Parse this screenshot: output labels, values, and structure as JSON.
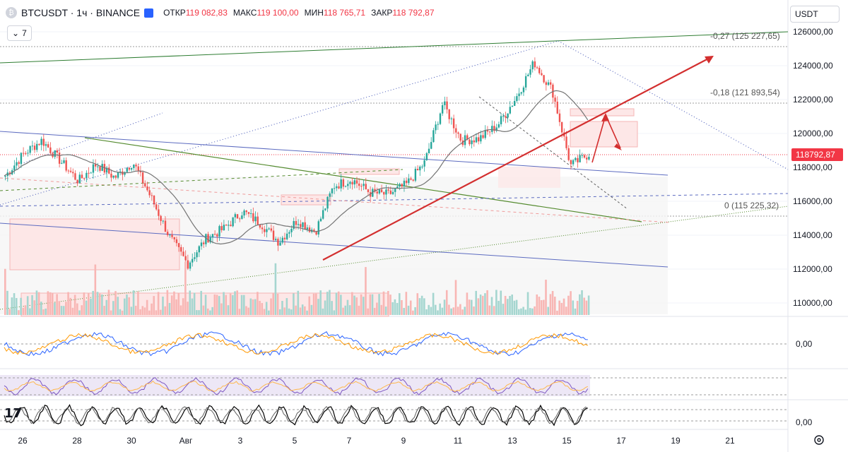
{
  "header": {
    "symbol": "BTCUSDT · 1ч · BINANCE",
    "open_label": "ОТКР",
    "open": "119 082,83",
    "high_label": "МАКС",
    "high": "119 100,00",
    "low_label": "МИН",
    "low": "118 765,71",
    "close_label": "ЗАКР",
    "close": "118 792,87"
  },
  "indicators_button": {
    "count": "7"
  },
  "currency": {
    "label": "USDT"
  },
  "price_axis": [
    "126000,00",
    "124000,00",
    "122000,00",
    "120000,00",
    "118000,00",
    "116000,00",
    "114000,00",
    "112000,00",
    "110000,00"
  ],
  "current_price": "118792,87",
  "fib_levels": [
    {
      "label": "-0,27 (125 227,65)",
      "price": 125227.65
    },
    {
      "label": "-0,18 (121 893,54)",
      "price": 121893.54
    },
    {
      "label": "0 (115 225,32)",
      "price": 115225.32
    }
  ],
  "osc_labels": {
    "macd_zero": "0,00",
    "stoch_zero": "0,00"
  },
  "time_axis": [
    "26",
    "28",
    "30",
    "Авг",
    "3",
    "5",
    "7",
    "9",
    "11",
    "13",
    "15",
    "17",
    "19",
    "21"
  ],
  "colors": {
    "up": "#26a69a",
    "down": "#ef5350",
    "price_tag": "#f23645",
    "trend": "#d32f2f"
  },
  "logo": {
    "text": "17"
  },
  "chart_data": {
    "type": "candlestick",
    "series": [
      {
        "name": "BTCUSDT",
        "values": [
          117500,
          118800,
          119600,
          118400,
          117200,
          118200,
          117400,
          118300,
          116200,
          113900,
          112300,
          113800,
          114400,
          115400,
          114700,
          113600,
          114900,
          114200,
          116900,
          117300,
          116500,
          116400,
          117000,
          118300,
          121800,
          119600,
          119700,
          120500,
          122100,
          124200,
          122500,
          118100,
          118800
        ]
      }
    ],
    "ylim": [
      109000,
      127500
    ]
  }
}
